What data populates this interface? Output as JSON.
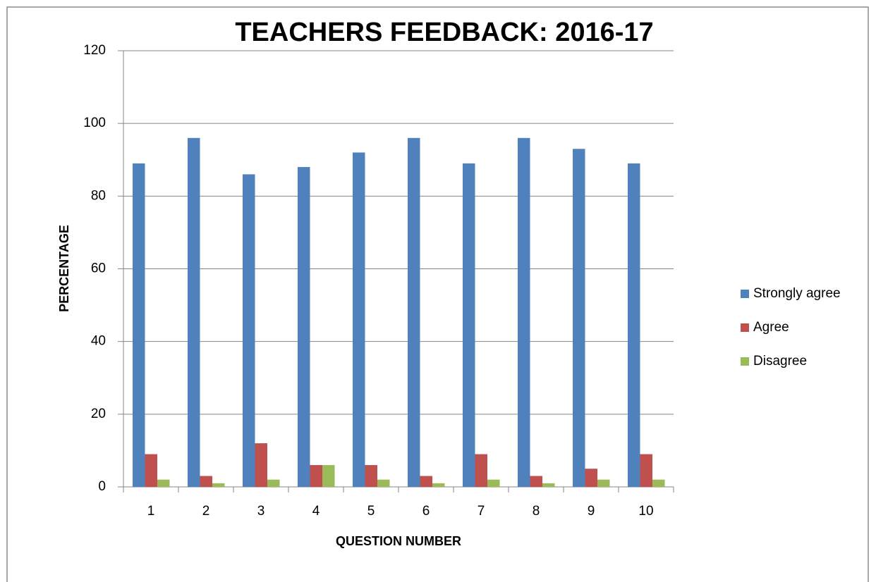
{
  "chart_data": {
    "type": "bar",
    "title": "TEACHERS FEEDBACK: 2016-17",
    "x_label": "QUESTION NUMBER",
    "y_label": "PERCENTAGE",
    "categories": [
      "1",
      "2",
      "3",
      "4",
      "5",
      "6",
      "7",
      "8",
      "9",
      "10"
    ],
    "series": [
      {
        "name": "Strongly agree",
        "color": "#4f81bd",
        "values": [
          89,
          96,
          86,
          88,
          92,
          96,
          89,
          96,
          93,
          89
        ]
      },
      {
        "name": "Agree",
        "color": "#c0504d",
        "values": [
          9,
          3,
          12,
          6,
          6,
          3,
          9,
          3,
          5,
          9
        ]
      },
      {
        "name": "Disagree",
        "color": "#9bbb59",
        "values": [
          2,
          1,
          2,
          6,
          2,
          1,
          2,
          1,
          2,
          2
        ]
      }
    ],
    "ylim": [
      0,
      120
    ],
    "yticks": [
      0,
      20,
      40,
      60,
      80,
      100,
      120
    ],
    "grid": true,
    "legend": "right"
  }
}
